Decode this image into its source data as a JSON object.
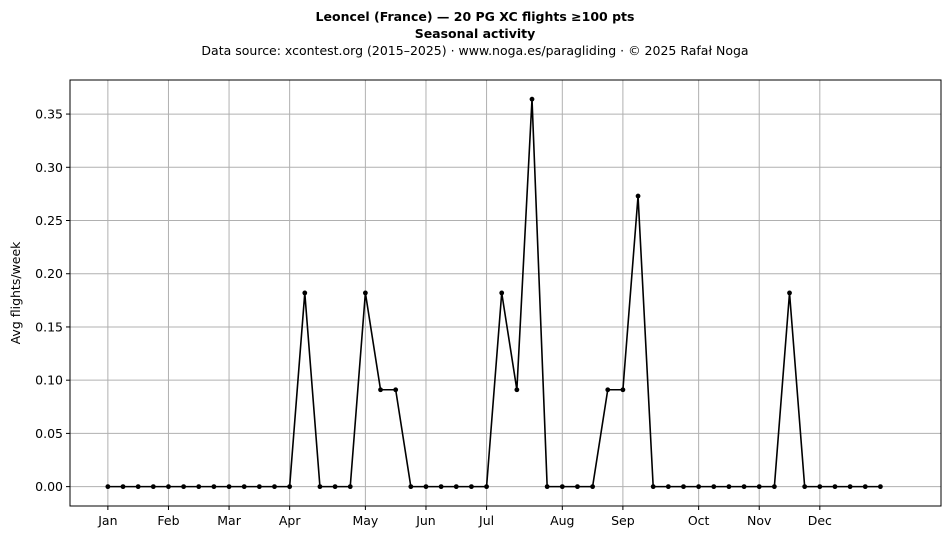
{
  "header": {
    "title": "Leoncel (France)  —  20 PG XC flights ≥100 pts",
    "subtitle": "Seasonal activity",
    "source_line": "Data source: xcontest.org (2015–2025)  ·  www.noga.es/paragliding  ·  © 2025 Rafał Noga"
  },
  "chart_data": {
    "type": "line",
    "title": "Leoncel (France)  —  20 PG XC flights ≥100 pts",
    "subtitle": "Seasonal activity",
    "xlabel": "",
    "ylabel": "Avg flights/week",
    "x_unit": "week of year",
    "x": [
      1,
      2,
      3,
      4,
      5,
      6,
      7,
      8,
      9,
      10,
      11,
      12,
      13,
      14,
      15,
      16,
      17,
      18,
      19,
      20,
      21,
      22,
      23,
      24,
      25,
      26,
      27,
      28,
      29,
      30,
      31,
      32,
      33,
      34,
      35,
      36,
      37,
      38,
      39,
      40,
      41,
      42,
      43,
      44,
      45,
      46,
      47,
      48,
      49,
      50,
      51,
      52
    ],
    "y": [
      0,
      0,
      0,
      0,
      0,
      0,
      0,
      0,
      0,
      0,
      0,
      0,
      0,
      0.182,
      0,
      0,
      0,
      0.182,
      0.091,
      0.091,
      0,
      0,
      0,
      0,
      0,
      0,
      0.182,
      0.091,
      0.364,
      0,
      0,
      0,
      0,
      0.091,
      0.091,
      0.273,
      0,
      0,
      0,
      0,
      0,
      0,
      0,
      0,
      0,
      0.182,
      0,
      0,
      0,
      0,
      0,
      0
    ],
    "xticks": [
      {
        "label": "Jan",
        "week": 1
      },
      {
        "label": "Feb",
        "week": 5
      },
      {
        "label": "Mar",
        "week": 9
      },
      {
        "label": "Apr",
        "week": 13
      },
      {
        "label": "May",
        "week": 18
      },
      {
        "label": "Jun",
        "week": 22
      },
      {
        "label": "Jul",
        "week": 26
      },
      {
        "label": "Aug",
        "week": 31
      },
      {
        "label": "Sep",
        "week": 35
      },
      {
        "label": "Oct",
        "week": 40
      },
      {
        "label": "Nov",
        "week": 44
      },
      {
        "label": "Dec",
        "week": 48
      }
    ],
    "yticks": [
      {
        "label": "0.00",
        "value": 0
      },
      {
        "label": "0.05",
        "value": 0.05
      },
      {
        "label": "0.10",
        "value": 0.1
      },
      {
        "label": "0.15",
        "value": 0.15
      },
      {
        "label": "0.20",
        "value": 0.2
      },
      {
        "label": "0.25",
        "value": 0.25
      },
      {
        "label": "0.30",
        "value": 0.3
      },
      {
        "label": "0.35",
        "value": 0.35
      }
    ],
    "xlim": [
      -1.5,
      56
    ],
    "ylim": [
      -0.0182,
      0.382
    ],
    "grid": true,
    "line_color": "#000000",
    "grid_color": "#b0b0b0",
    "marker": "dot"
  }
}
